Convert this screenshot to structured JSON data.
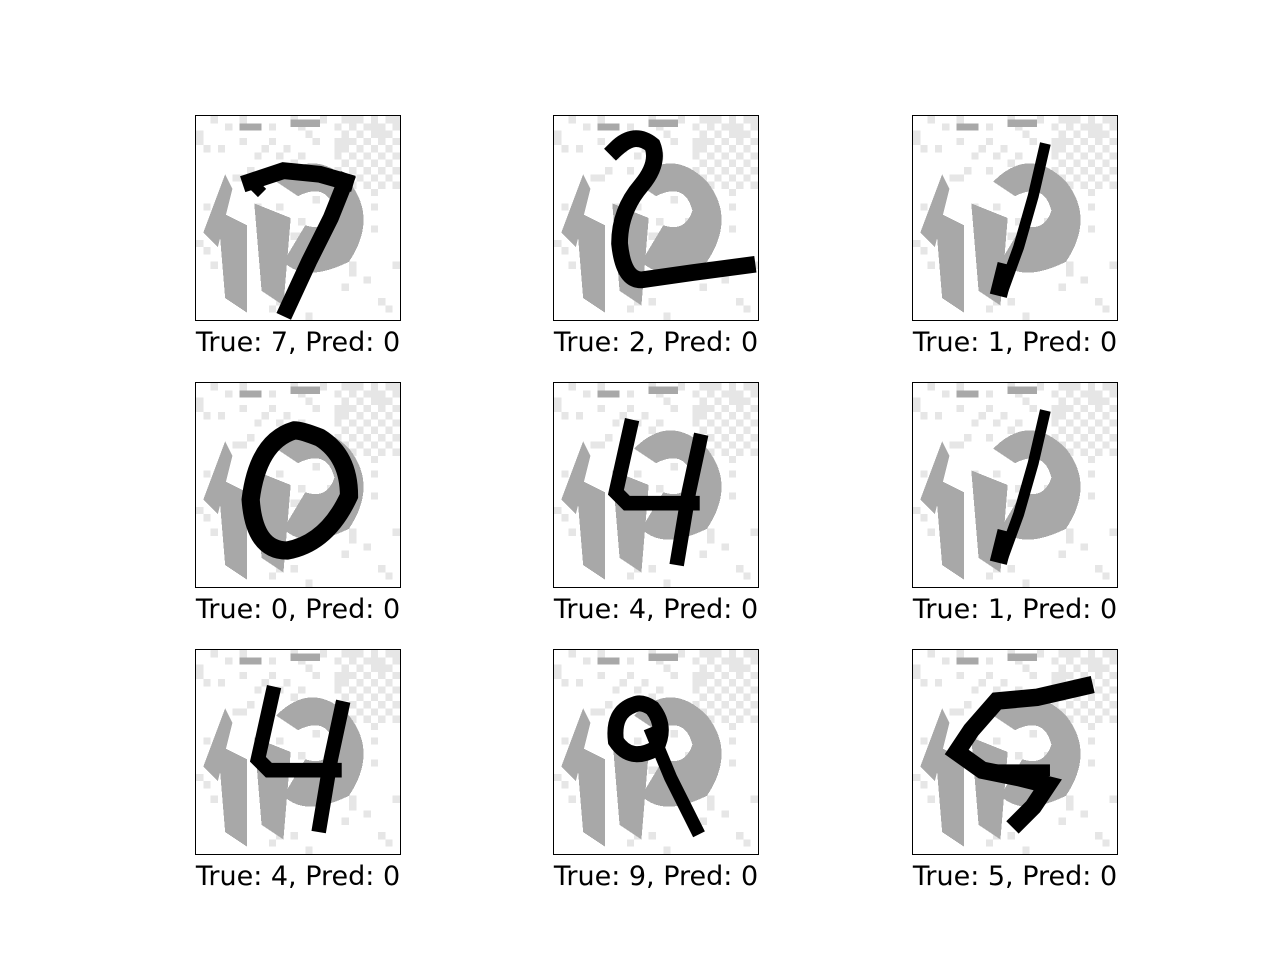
{
  "panels": [
    {
      "true_label": "7",
      "pred_label": "0",
      "caption": "True: 7, Pred: 0",
      "digit": "seven"
    },
    {
      "true_label": "2",
      "pred_label": "0",
      "caption": "True: 2, Pred: 0",
      "digit": "two"
    },
    {
      "true_label": "1",
      "pred_label": "0",
      "caption": "True: 1, Pred: 0",
      "digit": "one"
    },
    {
      "true_label": "0",
      "pred_label": "0",
      "caption": "True: 0, Pred: 0",
      "digit": "zero"
    },
    {
      "true_label": "4",
      "pred_label": "0",
      "caption": "True: 4, Pred: 0",
      "digit": "four"
    },
    {
      "true_label": "1",
      "pred_label": "0",
      "caption": "True: 1, Pred: 0",
      "digit": "one"
    },
    {
      "true_label": "4",
      "pred_label": "0",
      "caption": "True: 4, Pred: 0",
      "digit": "four"
    },
    {
      "true_label": "9",
      "pred_label": "0",
      "caption": "True: 9, Pred: 0",
      "digit": "nine"
    },
    {
      "true_label": "5",
      "pred_label": "0",
      "caption": "True: 5, Pred: 0",
      "digit": "five"
    }
  ],
  "colors": {
    "background_noise": "#a8a8a8",
    "light_noise": "#e6e6e6",
    "digit_stroke": "#000000",
    "tile_border": "#000000"
  }
}
